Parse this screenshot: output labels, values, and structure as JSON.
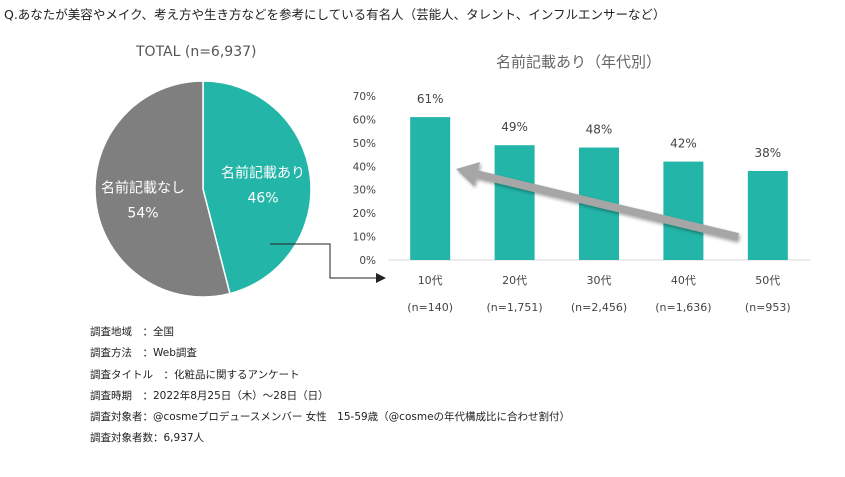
{
  "question": "Q.あなたが美容やメイク、考え方や生き方などを参考にしている有名人（芸能人、タレント、インフルエンサーなど）",
  "colors": {
    "teal": "#23b5a8",
    "gray": "#7f7f7f",
    "axis_text": "#444444",
    "arrow": "#a6a6a6"
  },
  "chart_data": [
    {
      "type": "pie",
      "title": "TOTAL (n=6,937)",
      "slices": [
        {
          "label": "名前記載あり",
          "value": 46,
          "value_label": "46%",
          "color": "#23b5a8"
        },
        {
          "label": "名前記載なし",
          "value": 54,
          "value_label": "54%",
          "color": "#7f7f7f"
        }
      ]
    },
    {
      "type": "bar",
      "title": "名前記載あり（年代別）",
      "categories": [
        "10代",
        "20代",
        "30代",
        "40代",
        "50代"
      ],
      "sample_sizes": [
        "(n=140)",
        "(n=1,751)",
        "(n=2,456)",
        "(n=1,636)",
        "(n=953)"
      ],
      "values": [
        61,
        49,
        48,
        42,
        38
      ],
      "value_labels": [
        "61%",
        "49%",
        "48%",
        "42%",
        "38%"
      ],
      "ylim": [
        0,
        70
      ],
      "yticks": [
        0,
        10,
        20,
        30,
        40,
        50,
        60,
        70
      ],
      "ytick_labels": [
        "0%",
        "10%",
        "20%",
        "30%",
        "40%",
        "50%",
        "60%",
        "70%"
      ],
      "annotation": "trend arrow pointing from 50代 toward 10代"
    }
  ],
  "notes": [
    "調査地域　：全国",
    "調査方法　：Web調査",
    "調査タイトル　：化粧品に関するアンケート",
    "調査時期　：2022年8月25日（木）～28日（日）",
    "調査対象者：@cosmeプロデュースメンバー 女性　15-59歳（@cosmeの年代構成比に合わせ割付）",
    "調査対象者数：6,937人"
  ]
}
